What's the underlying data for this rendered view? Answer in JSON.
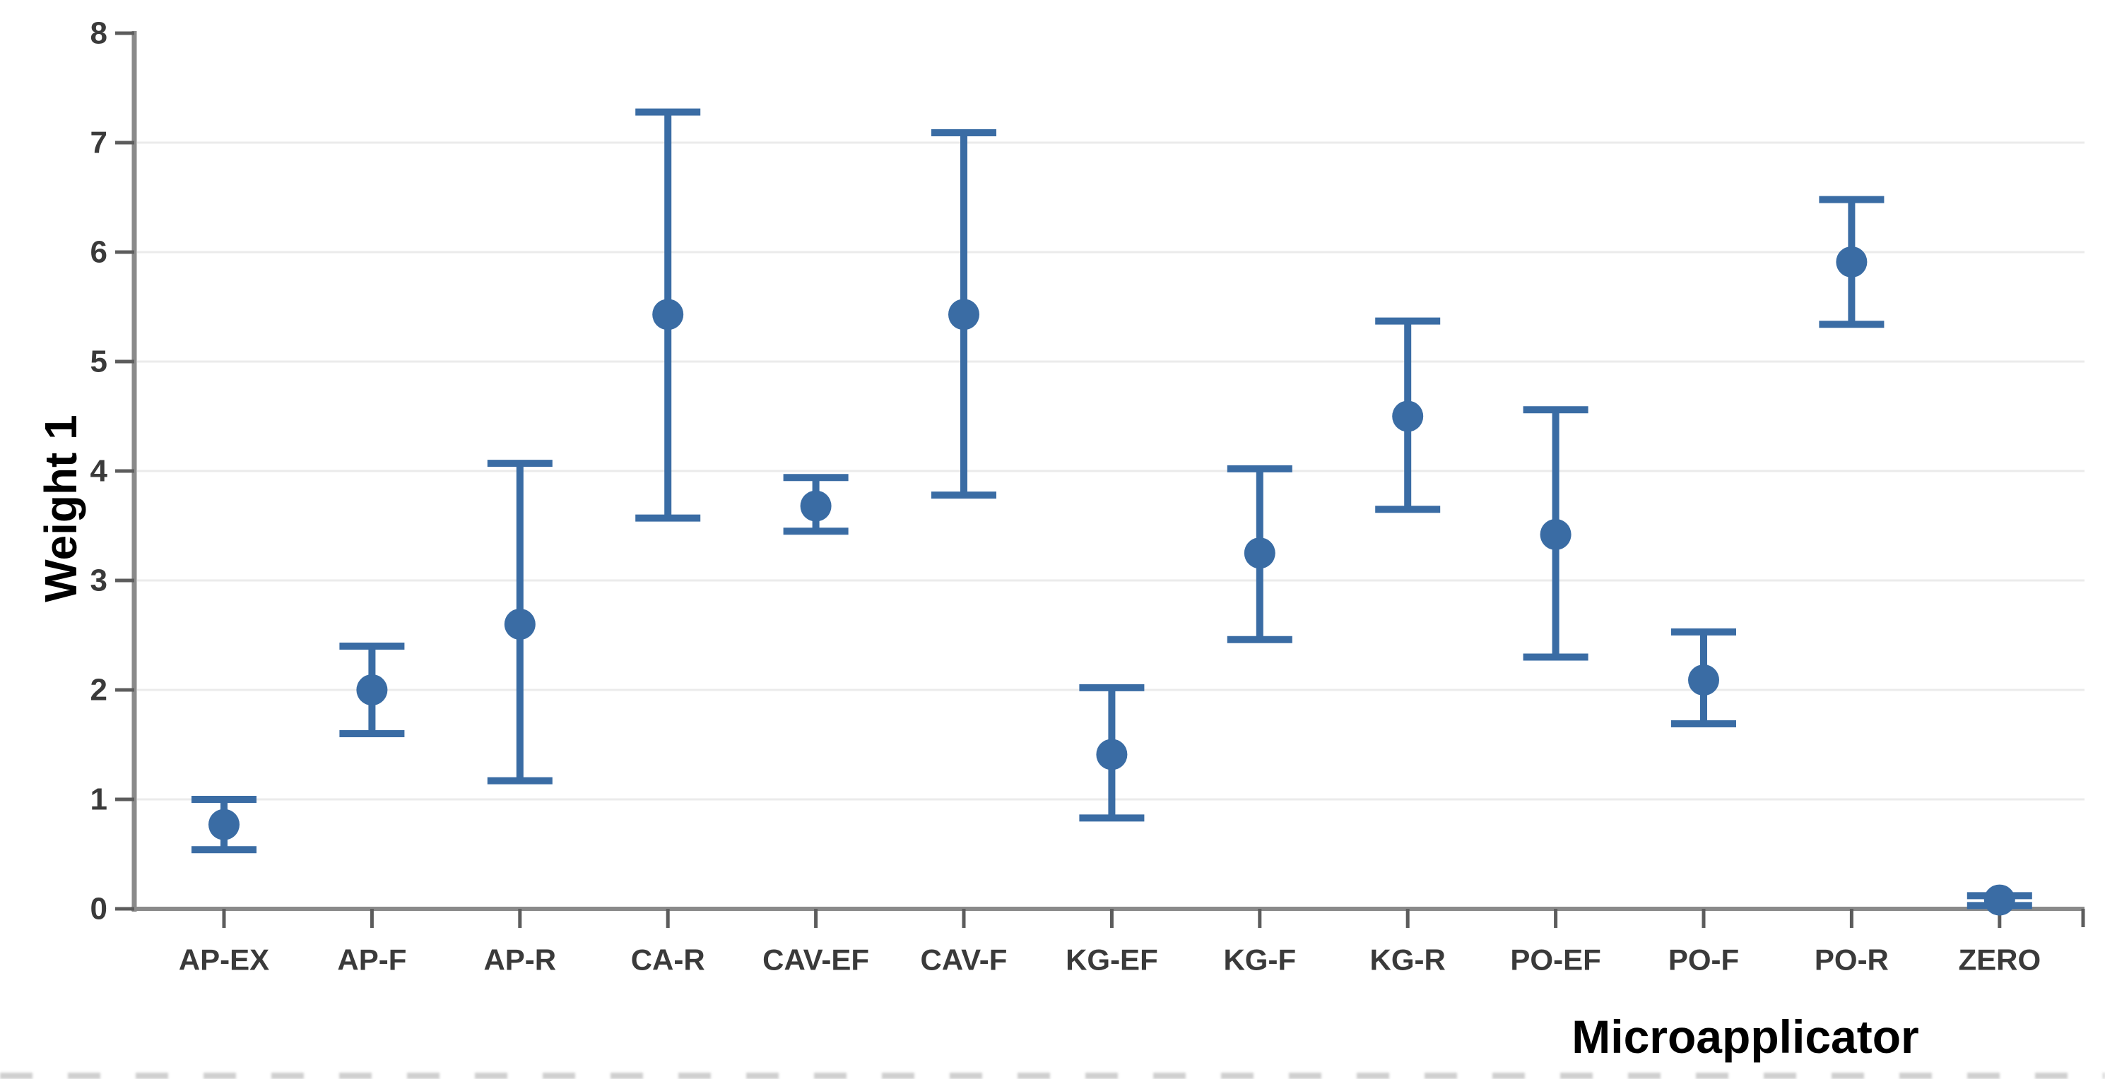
{
  "chart_data": {
    "type": "scatter",
    "subtype": "point-estimates-with-error-bars",
    "title": "",
    "xlabel": "Microapplicator",
    "ylabel": "Weight 1",
    "ylim": [
      0,
      8
    ],
    "yticks": [
      0,
      1,
      2,
      3,
      4,
      5,
      6,
      7,
      8
    ],
    "grid": "horizontal-light-gray",
    "legend": "none",
    "marker_color": "#3a6ca4",
    "axis_color": "#8a8a8a",
    "tick_color": "#5c5c5c",
    "gridline_color": "#ebebeb",
    "tick_label_color": "#3a3a3a",
    "categories": [
      "AP-EX",
      "AP-F",
      "AP-R",
      "CA-R",
      "CAV-EF",
      "CAV-F",
      "KG-EF",
      "KG-F",
      "KG-R",
      "PO-EF",
      "PO-F",
      "PO-R",
      "ZERO"
    ],
    "points": [
      {
        "category": "AP-EX",
        "mean": 0.77,
        "ci_low": 0.54,
        "ci_high": 1.0
      },
      {
        "category": "AP-F",
        "mean": 2.0,
        "ci_low": 1.6,
        "ci_high": 2.4
      },
      {
        "category": "AP-R",
        "mean": 2.6,
        "ci_low": 1.17,
        "ci_high": 4.07
      },
      {
        "category": "CA-R",
        "mean": 5.43,
        "ci_low": 3.57,
        "ci_high": 7.28
      },
      {
        "category": "CAV-EF",
        "mean": 3.68,
        "ci_low": 3.45,
        "ci_high": 3.94
      },
      {
        "category": "CAV-F",
        "mean": 5.43,
        "ci_low": 3.78,
        "ci_high": 7.09
      },
      {
        "category": "KG-EF",
        "mean": 1.41,
        "ci_low": 0.83,
        "ci_high": 2.02
      },
      {
        "category": "KG-F",
        "mean": 3.25,
        "ci_low": 2.46,
        "ci_high": 4.02
      },
      {
        "category": "KG-R",
        "mean": 4.5,
        "ci_low": 3.65,
        "ci_high": 5.37
      },
      {
        "category": "PO-EF",
        "mean": 3.42,
        "ci_low": 2.3,
        "ci_high": 4.56
      },
      {
        "category": "PO-F",
        "mean": 2.09,
        "ci_low": 1.69,
        "ci_high": 2.53
      },
      {
        "category": "PO-R",
        "mean": 5.91,
        "ci_low": 5.34,
        "ci_high": 6.48
      },
      {
        "category": "ZERO",
        "mean": 0.08,
        "ci_low": 0.03,
        "ci_high": 0.12
      }
    ]
  }
}
